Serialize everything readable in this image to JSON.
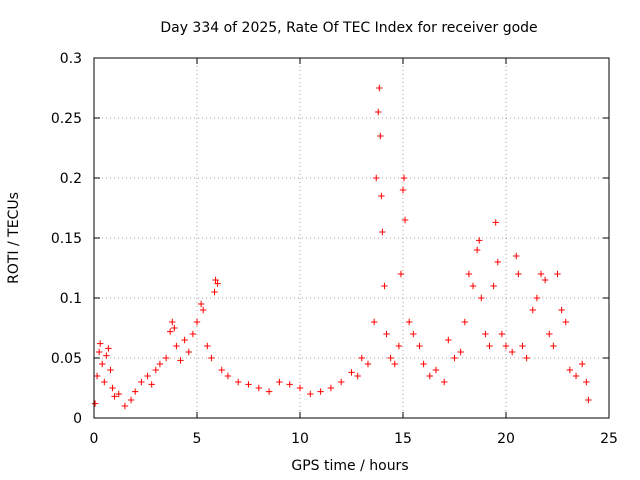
{
  "chart_data": {
    "type": "scatter",
    "title": "Day 334 of 2025, Rate Of TEC Index for receiver gode",
    "xlabel": "GPS time / hours",
    "ylabel": "ROTI / TECUs",
    "xlim": [
      0,
      25
    ],
    "ylim": [
      0,
      0.3
    ],
    "x_ticks": [
      0,
      5,
      10,
      15,
      20,
      25
    ],
    "x_tick_labels": [
      "0",
      "5",
      "10",
      "15",
      "20",
      "25"
    ],
    "y_ticks": [
      0,
      0.05,
      0.1,
      0.15,
      0.2,
      0.25,
      0.3
    ],
    "y_tick_labels": [
      "0",
      "0.05",
      "0.1",
      "0.15",
      "0.2",
      "0.25",
      "0.3"
    ],
    "grid": true,
    "marker": "+",
    "marker_color": "#ff0000",
    "series": [
      {
        "name": "ROTI",
        "points": [
          [
            0.05,
            0.012
          ],
          [
            0.15,
            0.035
          ],
          [
            0.25,
            0.055
          ],
          [
            0.3,
            0.062
          ],
          [
            0.4,
            0.045
          ],
          [
            0.5,
            0.03
          ],
          [
            0.6,
            0.052
          ],
          [
            0.7,
            0.058
          ],
          [
            0.8,
            0.04
          ],
          [
            0.9,
            0.025
          ],
          [
            1.0,
            0.018
          ],
          [
            1.2,
            0.02
          ],
          [
            1.5,
            0.01
          ],
          [
            1.8,
            0.015
          ],
          [
            2.0,
            0.022
          ],
          [
            2.3,
            0.03
          ],
          [
            2.6,
            0.035
          ],
          [
            2.8,
            0.028
          ],
          [
            3.0,
            0.04
          ],
          [
            3.2,
            0.045
          ],
          [
            3.5,
            0.05
          ],
          [
            3.7,
            0.072
          ],
          [
            3.8,
            0.08
          ],
          [
            3.9,
            0.075
          ],
          [
            4.0,
            0.06
          ],
          [
            4.2,
            0.048
          ],
          [
            4.4,
            0.065
          ],
          [
            4.6,
            0.055
          ],
          [
            4.8,
            0.07
          ],
          [
            5.0,
            0.08
          ],
          [
            5.2,
            0.095
          ],
          [
            5.3,
            0.09
          ],
          [
            5.5,
            0.06
          ],
          [
            5.7,
            0.05
          ],
          [
            5.85,
            0.105
          ],
          [
            5.9,
            0.115
          ],
          [
            6.0,
            0.112
          ],
          [
            6.2,
            0.04
          ],
          [
            6.5,
            0.035
          ],
          [
            7.0,
            0.03
          ],
          [
            7.5,
            0.028
          ],
          [
            8.0,
            0.025
          ],
          [
            8.5,
            0.022
          ],
          [
            9.0,
            0.03
          ],
          [
            9.5,
            0.028
          ],
          [
            10.0,
            0.025
          ],
          [
            10.5,
            0.02
          ],
          [
            11.0,
            0.022
          ],
          [
            11.5,
            0.025
          ],
          [
            12.0,
            0.03
          ],
          [
            12.5,
            0.038
          ],
          [
            12.8,
            0.035
          ],
          [
            13.0,
            0.05
          ],
          [
            13.3,
            0.045
          ],
          [
            13.6,
            0.08
          ],
          [
            13.7,
            0.2
          ],
          [
            13.8,
            0.255
          ],
          [
            13.85,
            0.275
          ],
          [
            13.9,
            0.235
          ],
          [
            13.95,
            0.185
          ],
          [
            14.0,
            0.155
          ],
          [
            14.1,
            0.11
          ],
          [
            14.2,
            0.07
          ],
          [
            14.4,
            0.05
          ],
          [
            14.6,
            0.045
          ],
          [
            14.8,
            0.06
          ],
          [
            14.9,
            0.12
          ],
          [
            15.0,
            0.19
          ],
          [
            15.05,
            0.2
          ],
          [
            15.1,
            0.165
          ],
          [
            15.3,
            0.08
          ],
          [
            15.5,
            0.07
          ],
          [
            15.8,
            0.06
          ],
          [
            16.0,
            0.045
          ],
          [
            16.3,
            0.035
          ],
          [
            16.6,
            0.04
          ],
          [
            17.0,
            0.03
          ],
          [
            17.2,
            0.065
          ],
          [
            17.5,
            0.05
          ],
          [
            17.8,
            0.055
          ],
          [
            18.0,
            0.08
          ],
          [
            18.2,
            0.12
          ],
          [
            18.4,
            0.11
          ],
          [
            18.6,
            0.14
          ],
          [
            18.7,
            0.148
          ],
          [
            18.8,
            0.1
          ],
          [
            19.0,
            0.07
          ],
          [
            19.2,
            0.06
          ],
          [
            19.4,
            0.11
          ],
          [
            19.5,
            0.163
          ],
          [
            19.6,
            0.13
          ],
          [
            19.8,
            0.07
          ],
          [
            20.0,
            0.06
          ],
          [
            20.3,
            0.055
          ],
          [
            20.5,
            0.135
          ],
          [
            20.6,
            0.12
          ],
          [
            20.8,
            0.06
          ],
          [
            21.0,
            0.05
          ],
          [
            21.3,
            0.09
          ],
          [
            21.5,
            0.1
          ],
          [
            21.7,
            0.12
          ],
          [
            21.9,
            0.115
          ],
          [
            22.1,
            0.07
          ],
          [
            22.3,
            0.06
          ],
          [
            22.5,
            0.12
          ],
          [
            22.7,
            0.09
          ],
          [
            22.9,
            0.08
          ],
          [
            23.1,
            0.04
          ],
          [
            23.4,
            0.035
          ],
          [
            23.7,
            0.045
          ],
          [
            23.9,
            0.03
          ],
          [
            24.0,
            0.015
          ]
        ]
      }
    ]
  }
}
